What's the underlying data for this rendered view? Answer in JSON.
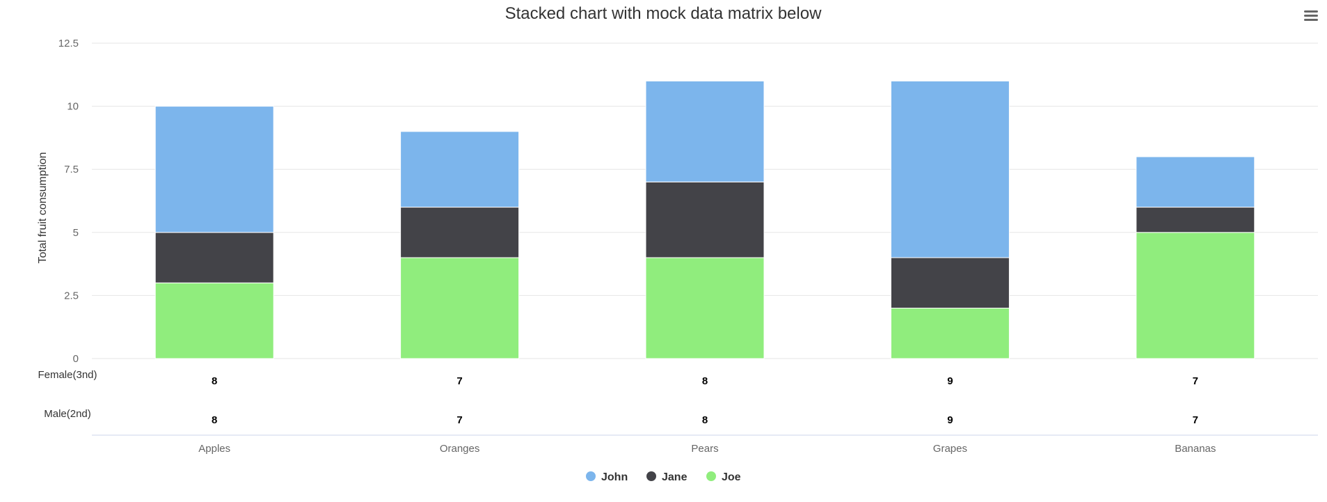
{
  "chart_data": {
    "type": "bar",
    "stacked": true,
    "title": "Stacked chart with mock data matrix below",
    "xlabel": "",
    "ylabel": "Total fruit consumption",
    "ylim": [
      0,
      12.5
    ],
    "yticks": [
      "0",
      "2.5",
      "5",
      "7.5",
      "10",
      "12.5"
    ],
    "categories": [
      "Apples",
      "Oranges",
      "Pears",
      "Grapes",
      "Bananas"
    ],
    "series": [
      {
        "name": "John",
        "color": "#7cb5ec",
        "values": [
          5,
          3,
          4,
          7,
          2
        ]
      },
      {
        "name": "Jane",
        "color": "#434348",
        "values": [
          2,
          2,
          3,
          2,
          1
        ]
      },
      {
        "name": "Joe",
        "color": "#90ed7d",
        "values": [
          3,
          4,
          4,
          2,
          5
        ]
      }
    ],
    "stack_order_bottom_to_top": [
      "Joe",
      "Jane",
      "John"
    ],
    "matrix": [
      {
        "label": "Female(3nd)",
        "values": [
          "8",
          "7",
          "8",
          "9",
          "7"
        ]
      },
      {
        "label": "Male(2nd)",
        "values": [
          "8",
          "7",
          "8",
          "9",
          "7"
        ]
      }
    ],
    "legend": [
      "John",
      "Jane",
      "Joe"
    ],
    "legend_placement": "bottom-center",
    "grid": true
  },
  "menu_icon": "hamburger-menu-icon"
}
